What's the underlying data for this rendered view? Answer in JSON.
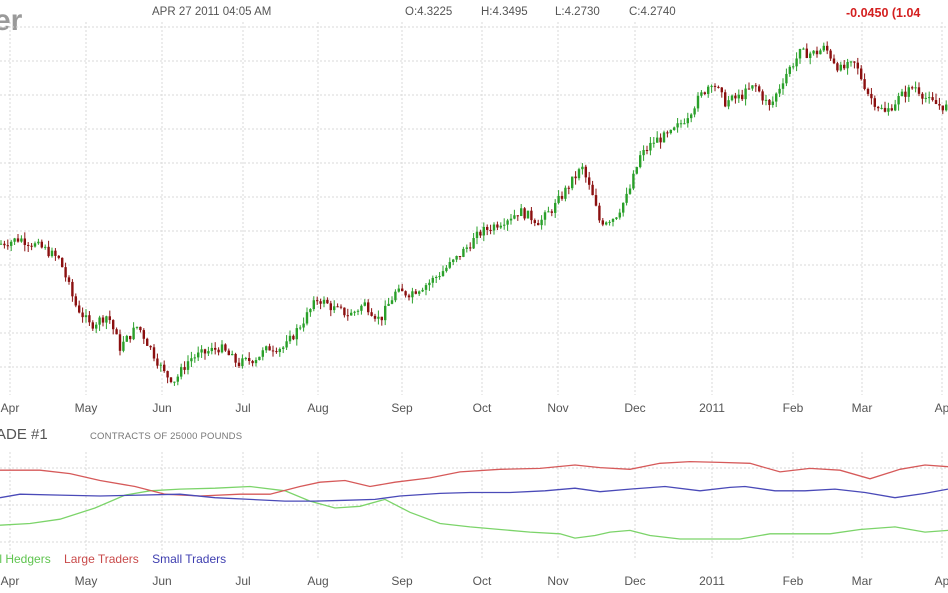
{
  "header": {
    "title_fragment": "er",
    "datetime": "APR 27 2011 04:05 AM",
    "open": "O:4.3225",
    "high": "H:4.3495",
    "low": "L:4.2730",
    "close": "C:4.2740",
    "change": "-0.0450 (1.04"
  },
  "cot": {
    "title": "ADE #1",
    "subtitle": "CONTRACTS OF 25000 POUNDS"
  },
  "colors": {
    "up": "#2aa02a",
    "down": "#8b1010",
    "grid": "#d8d8d8",
    "commercial": "#7cd46a",
    "large": "#d65a5a",
    "small": "#4a4ab8"
  },
  "chart_data": [
    {
      "type": "candlestick",
      "x_labels": [
        "Apr",
        "May",
        "Jun",
        "Jul",
        "Aug",
        "Sep",
        "Oct",
        "Nov",
        "Dec",
        "2011",
        "Feb",
        "Mar",
        "Ap"
      ],
      "y_axis_labels": "not visible",
      "close_series": [
        [
          0,
          4.05
        ],
        [
          20,
          4.06
        ],
        [
          45,
          4.04
        ],
        [
          60,
          4.02
        ],
        [
          75,
          3.94
        ],
        [
          90,
          3.9
        ],
        [
          108,
          3.92
        ],
        [
          120,
          3.86
        ],
        [
          138,
          3.9
        ],
        [
          150,
          3.86
        ],
        [
          165,
          3.81
        ],
        [
          175,
          3.8
        ],
        [
          190,
          3.84
        ],
        [
          205,
          3.85
        ],
        [
          220,
          3.86
        ],
        [
          238,
          3.83
        ],
        [
          255,
          3.84
        ],
        [
          270,
          3.86
        ],
        [
          285,
          3.86
        ],
        [
          300,
          3.9
        ],
        [
          318,
          3.95
        ],
        [
          335,
          3.93
        ],
        [
          350,
          3.92
        ],
        [
          365,
          3.94
        ],
        [
          380,
          3.91
        ],
        [
          395,
          3.96
        ],
        [
          410,
          3.96
        ],
        [
          430,
          3.98
        ],
        [
          455,
          4.02
        ],
        [
          480,
          4.07
        ],
        [
          500,
          4.09
        ],
        [
          520,
          4.11
        ],
        [
          540,
          4.09
        ],
        [
          555,
          4.12
        ],
        [
          570,
          4.16
        ],
        [
          582,
          4.19
        ],
        [
          592,
          4.14
        ],
        [
          600,
          4.09
        ],
        [
          615,
          4.1
        ],
        [
          628,
          4.14
        ],
        [
          640,
          4.21
        ],
        [
          655,
          4.24
        ],
        [
          670,
          4.25
        ],
        [
          685,
          4.28
        ],
        [
          700,
          4.32
        ],
        [
          712,
          4.35
        ],
        [
          725,
          4.31
        ],
        [
          740,
          4.32
        ],
        [
          755,
          4.34
        ],
        [
          770,
          4.3
        ],
        [
          785,
          4.36
        ],
        [
          800,
          4.4
        ],
        [
          815,
          4.4
        ],
        [
          825,
          4.41
        ],
        [
          840,
          4.37
        ],
        [
          855,
          4.38
        ],
        [
          870,
          4.32
        ],
        [
          885,
          4.29
        ],
        [
          900,
          4.32
        ],
        [
          915,
          4.34
        ],
        [
          930,
          4.31
        ],
        [
          948,
          4.3
        ]
      ],
      "y_range": [
        3.78,
        4.45
      ]
    },
    {
      "type": "line",
      "subtitle": "CONTRACTS OF 25000 POUNDS",
      "x_labels": [
        "Apr",
        "May",
        "Jun",
        "Jul",
        "Aug",
        "Sep",
        "Oct",
        "Nov",
        "Dec",
        "2011",
        "Feb",
        "Mar",
        "Ap"
      ],
      "series": [
        {
          "name": "cial Hedgers",
          "points": [
            [
              0,
              0.7
            ],
            [
              30,
              0.68
            ],
            [
              60,
              0.63
            ],
            [
              95,
              0.5
            ],
            [
              125,
              0.35
            ],
            [
              150,
              0.3
            ],
            [
              180,
              0.28
            ],
            [
              215,
              0.27
            ],
            [
              250,
              0.25
            ],
            [
              285,
              0.3
            ],
            [
              310,
              0.42
            ],
            [
              335,
              0.5
            ],
            [
              360,
              0.48
            ],
            [
              385,
              0.4
            ],
            [
              410,
              0.55
            ],
            [
              440,
              0.68
            ],
            [
              470,
              0.72
            ],
            [
              500,
              0.75
            ],
            [
              530,
              0.78
            ],
            [
              560,
              0.8
            ],
            [
              575,
              0.85
            ],
            [
              595,
              0.82
            ],
            [
              610,
              0.78
            ],
            [
              630,
              0.76
            ],
            [
              650,
              0.82
            ],
            [
              680,
              0.86
            ],
            [
              710,
              0.86
            ],
            [
              740,
              0.86
            ],
            [
              770,
              0.8
            ],
            [
              800,
              0.8
            ],
            [
              830,
              0.8
            ],
            [
              860,
              0.75
            ],
            [
              895,
              0.72
            ],
            [
              925,
              0.78
            ],
            [
              948,
              0.76
            ]
          ]
        },
        {
          "name": "Large Traders",
          "points": [
            [
              0,
              0.06
            ],
            [
              40,
              0.06
            ],
            [
              70,
              0.1
            ],
            [
              100,
              0.18
            ],
            [
              135,
              0.25
            ],
            [
              165,
              0.34
            ],
            [
              200,
              0.36
            ],
            [
              240,
              0.34
            ],
            [
              270,
              0.34
            ],
            [
              300,
              0.25
            ],
            [
              320,
              0.2
            ],
            [
              345,
              0.18
            ],
            [
              370,
              0.25
            ],
            [
              395,
              0.2
            ],
            [
              430,
              0.15
            ],
            [
              460,
              0.08
            ],
            [
              500,
              0.05
            ],
            [
              540,
              0.04
            ],
            [
              575,
              0.0
            ],
            [
              600,
              0.03
            ],
            [
              630,
              0.05
            ],
            [
              660,
              -0.02
            ],
            [
              690,
              -0.04
            ],
            [
              720,
              -0.03
            ],
            [
              750,
              -0.02
            ],
            [
              780,
              0.08
            ],
            [
              810,
              0.04
            ],
            [
              840,
              0.06
            ],
            [
              870,
              0.16
            ],
            [
              900,
              0.05
            ],
            [
              925,
              0.0
            ],
            [
              948,
              0.02
            ]
          ]
        },
        {
          "name": "Small Traders",
          "points": [
            [
              0,
              0.38
            ],
            [
              20,
              0.34
            ],
            [
              60,
              0.35
            ],
            [
              100,
              0.36
            ],
            [
              140,
              0.35
            ],
            [
              180,
              0.34
            ],
            [
              215,
              0.38
            ],
            [
              250,
              0.4
            ],
            [
              285,
              0.42
            ],
            [
              315,
              0.42
            ],
            [
              345,
              0.41
            ],
            [
              375,
              0.4
            ],
            [
              400,
              0.36
            ],
            [
              440,
              0.33
            ],
            [
              470,
              0.32
            ],
            [
              510,
              0.32
            ],
            [
              545,
              0.3
            ],
            [
              575,
              0.27
            ],
            [
              600,
              0.31
            ],
            [
              630,
              0.28
            ],
            [
              665,
              0.25
            ],
            [
              700,
              0.3
            ],
            [
              730,
              0.26
            ],
            [
              745,
              0.25
            ],
            [
              775,
              0.3
            ],
            [
              805,
              0.3
            ],
            [
              835,
              0.28
            ],
            [
              865,
              0.32
            ],
            [
              895,
              0.38
            ],
            [
              925,
              0.33
            ],
            [
              948,
              0.28
            ]
          ]
        }
      ]
    }
  ],
  "legend": [
    "cial Hedgers",
    "Large Traders",
    "Small Traders"
  ]
}
